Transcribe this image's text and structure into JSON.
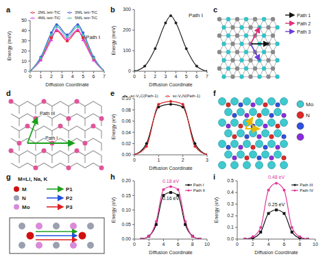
{
  "chart_data": [
    {
      "panel": "a",
      "type": "line",
      "x_label": "Diffusion Coordinate",
      "y_label": "Energy (meV)",
      "annotations": [
        "Path I"
      ],
      "legend": "top",
      "x": [
        0,
        1,
        2,
        2.5,
        3.5,
        4.5,
        5,
        6,
        7
      ],
      "xlim": [
        0,
        7
      ],
      "xticks": [
        0,
        1,
        2,
        3,
        4,
        5,
        6,
        7
      ],
      "ylim": [
        0,
        50
      ],
      "yticks": [
        0,
        10,
        20,
        30,
        40,
        50
      ],
      "series": [
        {
          "name": "2ML tetr-TiC",
          "color": "#e8262b",
          "marker": "square",
          "values": [
            0,
            12,
            33,
            40,
            30,
            40,
            33,
            12,
            0
          ]
        },
        {
          "name": "3ML tetr-TiC",
          "color": "#3b5bdb",
          "marker": "circle",
          "values": [
            0,
            14,
            38,
            46,
            36,
            46,
            38,
            14,
            0
          ]
        },
        {
          "name": "4ML tetr-TiC",
          "color": "#e040e0",
          "marker": "triangle",
          "values": [
            0,
            11,
            31,
            41,
            32,
            41,
            31,
            11,
            0
          ]
        },
        {
          "name": "5ML tetr-TiC",
          "color": "#3fbfae",
          "marker": "circle",
          "values": [
            0,
            13,
            36,
            44,
            34,
            44,
            36,
            13,
            0
          ]
        }
      ]
    },
    {
      "panel": "b",
      "type": "line",
      "x_label": "Diffusion Coordinate",
      "y_label": "Energy (meV)",
      "annotations": [
        "Path I"
      ],
      "x": [
        0,
        1,
        2,
        3,
        3.5,
        4,
        5,
        6,
        7
      ],
      "xlim": [
        0,
        7
      ],
      "xticks": [
        0,
        1,
        2,
        3,
        4,
        5,
        6,
        7
      ],
      "ylim": [
        0,
        300
      ],
      "yticks": [
        0,
        100,
        200,
        300
      ],
      "series": [
        {
          "color": "#222222",
          "marker": "circle",
          "values": [
            0,
            25,
            110,
            235,
            270,
            235,
            110,
            25,
            0
          ]
        }
      ]
    },
    {
      "panel": "e",
      "type": "line",
      "x_label": "Diffusion Coordinate",
      "y_label": "Energy (eV)",
      "legend": "top",
      "x": [
        0,
        0.5,
        1,
        1.5,
        2,
        2.5,
        3
      ],
      "xlim": [
        0,
        3
      ],
      "xticks": [
        0,
        1,
        2,
        3
      ],
      "ylim": [
        0,
        0.1
      ],
      "yticks": [
        {
          "value": 0,
          "label": "0.00"
        },
        {
          "value": 0.02,
          "label": "0.02"
        },
        {
          "value": 0.04,
          "label": "0.04"
        },
        {
          "value": 0.06,
          "label": "0.06"
        },
        {
          "value": 0.08,
          "label": "0.08"
        },
        {
          "value": 0.1,
          "label": "0.10"
        }
      ],
      "series": [
        {
          "name": "sc-V₂C(Path-1)",
          "color": "#111111",
          "marker": "circle",
          "values": [
            0,
            0.02,
            0.085,
            0.09,
            0.085,
            0.02,
            0
          ]
        },
        {
          "name": "sc-V₂N(Path-1)",
          "color": "#d62728",
          "marker": "circle",
          "values": [
            0,
            0.015,
            0.09,
            0.095,
            0.09,
            0.015,
            0
          ]
        }
      ]
    },
    {
      "panel": "h",
      "type": "line",
      "x_label": "Diffusion Coordinate",
      "y_label": "Energy (eV)",
      "legend": "upper right",
      "x": [
        1,
        2,
        3,
        4,
        5,
        6,
        7,
        8,
        9
      ],
      "xlim": [
        0,
        10
      ],
      "xticks": [
        0,
        2,
        4,
        6,
        8,
        10
      ],
      "ylim": [
        0,
        0.2
      ],
      "yticks": [
        {
          "value": 0,
          "label": "0.00"
        },
        {
          "value": 0.05,
          "label": "0.05"
        },
        {
          "value": 0.1,
          "label": "0.10"
        },
        {
          "value": 0.15,
          "label": "0.15"
        },
        {
          "value": 0.2,
          "label": "0.20"
        }
      ],
      "series": [
        {
          "name": "Path I",
          "color": "#111111",
          "marker": "square",
          "peak_label": "0.16 eV",
          "values": [
            0,
            0.01,
            0.05,
            0.15,
            0.16,
            0.15,
            0.05,
            0.01,
            0
          ]
        },
        {
          "name": "Path II",
          "color": "#e0379a",
          "marker": "circle",
          "peak_label": "0.18 eV",
          "values": [
            0,
            0.01,
            0.06,
            0.17,
            0.18,
            0.17,
            0.06,
            0.01,
            0
          ]
        }
      ]
    },
    {
      "panel": "i",
      "type": "line",
      "x_label": "Diffusion Coordinate",
      "y_label": "Energy (eV)",
      "legend": "upper right",
      "x": [
        1,
        2,
        3,
        4,
        5,
        6,
        7,
        8,
        9
      ],
      "xlim": [
        0,
        10
      ],
      "xticks": [
        0,
        2,
        4,
        6,
        8,
        10
      ],
      "ylim": [
        0,
        0.5
      ],
      "yticks": [
        {
          "value": 0,
          "label": "0.0"
        },
        0.1,
        0.2,
        0.3,
        0.4,
        0.5
      ],
      "series": [
        {
          "name": "Path III",
          "color": "#111111",
          "marker": "square",
          "peak_label": "0.25 eV",
          "values": [
            0,
            0.01,
            0.06,
            0.22,
            0.25,
            0.22,
            0.06,
            0.01,
            0
          ]
        },
        {
          "name": "Path IV",
          "color": "#e0379a",
          "marker": "circle",
          "peak_label": "0.48 eV",
          "values": [
            0,
            0.02,
            0.1,
            0.42,
            0.48,
            0.42,
            0.1,
            0.02,
            0
          ]
        }
      ]
    }
  ],
  "diagrams": [
    {
      "panel": "c",
      "paths": [
        {
          "name": "Path 1",
          "color": "#111111"
        },
        {
          "name": "Path 2",
          "color": "#e0307a"
        },
        {
          "name": "Path 3",
          "color": "#6a3dd8"
        }
      ]
    },
    {
      "panel": "d",
      "labels": [
        "Path III",
        "Path I"
      ]
    },
    {
      "panel": "f",
      "legend": [
        {
          "name": "Mo",
          "color": "#3fc9d0"
        },
        {
          "name": "N",
          "color": "#e02828"
        }
      ]
    },
    {
      "panel": "g",
      "caption": "M=Li, Na, K",
      "atoms": [
        {
          "name": "M",
          "color": "#d01010"
        },
        {
          "name": "N",
          "color": "#9aa0b0"
        },
        {
          "name": "Mo",
          "color": "#d98ad9"
        }
      ],
      "paths": [
        {
          "name": "P1",
          "color": "#20a020"
        },
        {
          "name": "P2",
          "color": "#2050e0"
        },
        {
          "name": "P3",
          "color": "#e02020"
        }
      ]
    }
  ]
}
